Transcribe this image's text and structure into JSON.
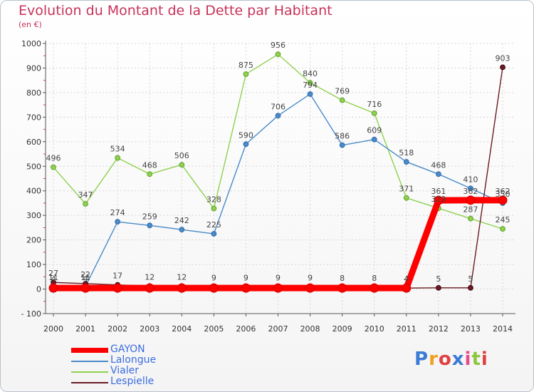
{
  "header": {
    "title": "Evolution du Montant de la Dette par Habitant",
    "subtitle": "(en €)"
  },
  "logo": {
    "text": "Proxiti",
    "colors": [
      "#3a7bd5",
      "#f0a020",
      "#e04040",
      "#3a7bd5",
      "#e84a8a",
      "#8cc63f",
      "#e04040"
    ]
  },
  "chart_data": {
    "type": "line",
    "categories": [
      "2000",
      "2001",
      "2002",
      "2003",
      "2004",
      "2005",
      "2006",
      "2007",
      "2008",
      "2009",
      "2010",
      "2011",
      "2012",
      "2013",
      "2014"
    ],
    "ylim": [
      -100,
      1000
    ],
    "yticks": [
      -100,
      0,
      100,
      200,
      300,
      400,
      500,
      600,
      700,
      800,
      900,
      1000
    ],
    "ytick_labels": [
      "- 100",
      "0",
      "100",
      "200",
      "300",
      "400",
      "500",
      "600",
      "700",
      "800",
      "900",
      "1000"
    ],
    "grid": true,
    "legend_position": "bottom-left",
    "series": [
      {
        "name": "GAYON",
        "color": "#ff0000",
        "values": [
          4,
          4,
          4,
          4,
          4,
          4,
          4,
          4,
          4,
          4,
          4,
          4,
          361,
          362,
          362
        ],
        "labels": [
          "4",
          "4",
          "",
          "",
          "",
          "",
          "",
          "",
          "",
          "",
          "",
          "4",
          "361",
          "362",
          "362"
        ]
      },
      {
        "name": "Lalongue",
        "color": "#4a8ac8",
        "values": [
          11,
          11,
          274,
          259,
          242,
          225,
          590,
          706,
          794,
          586,
          609,
          518,
          468,
          410,
          350
        ],
        "labels": [
          "11",
          "11",
          "274",
          "259",
          "242",
          "225",
          "590",
          "706",
          "794",
          "586",
          "609",
          "518",
          "468",
          "410",
          "350"
        ]
      },
      {
        "name": "Vialer",
        "color": "#8fd14f",
        "values": [
          496,
          347,
          534,
          468,
          506,
          328,
          875,
          956,
          840,
          769,
          716,
          371,
          329,
          287,
          245
        ],
        "labels": [
          "496",
          "347",
          "534",
          "468",
          "506",
          "328",
          "875",
          "956",
          "840",
          "769",
          "716",
          "371",
          "329",
          "287",
          "245"
        ]
      },
      {
        "name": "Lespielle",
        "color": "#6b1a24",
        "values": [
          27,
          22,
          17,
          12,
          12,
          9,
          9,
          9,
          9,
          8,
          8,
          4,
          5,
          5,
          903
        ],
        "labels": [
          "27",
          "22",
          "17",
          "12",
          "12",
          "9",
          "9",
          "9",
          "9",
          "8",
          "8",
          "4",
          "5",
          "5",
          "903"
        ]
      }
    ]
  }
}
